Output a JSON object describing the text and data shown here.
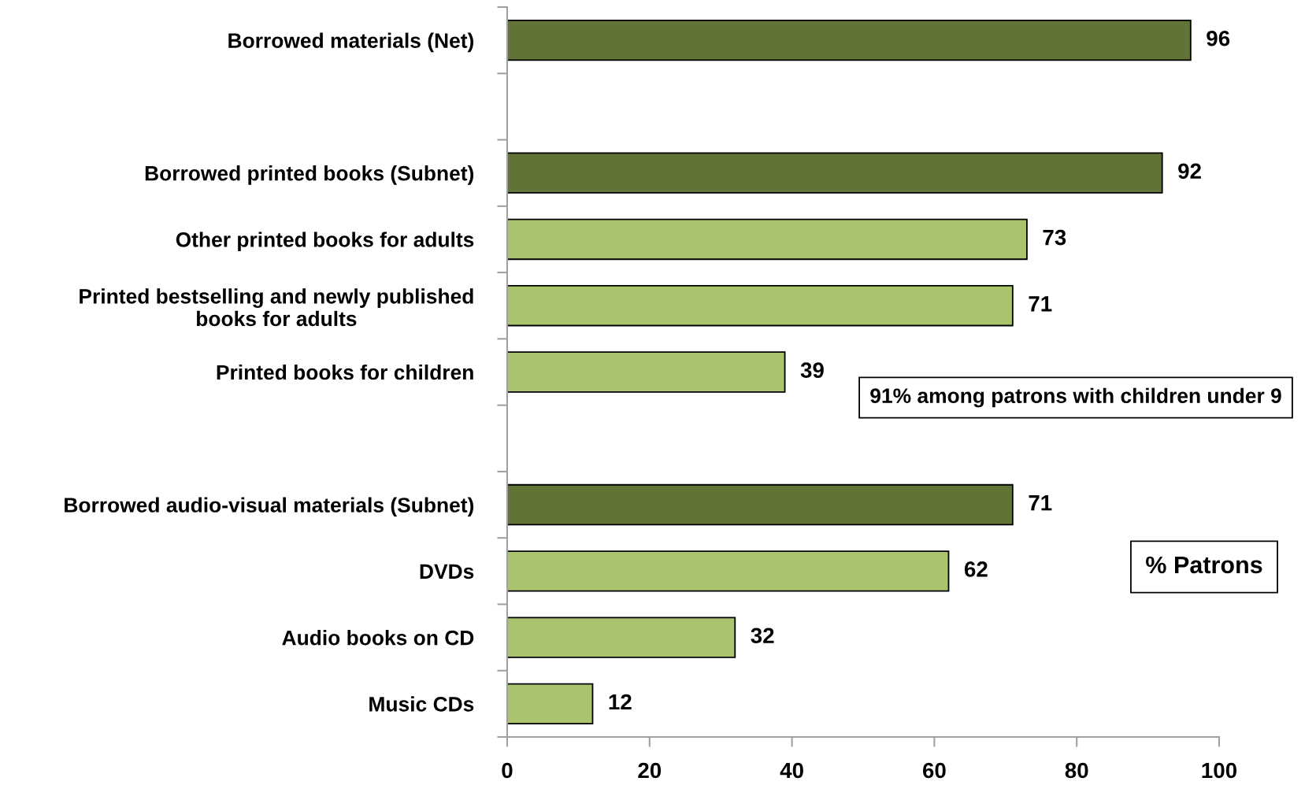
{
  "chart_data": {
    "type": "bar",
    "orientation": "horizontal",
    "categories": [
      "Borrowed materials (Net)",
      null,
      "Borrowed printed books (Subnet)",
      "Other printed books for adults",
      "Printed bestselling and newly published\nbooks for adults",
      "Printed books for children",
      null,
      "Borrowed audio-visual materials (Subnet)",
      "DVDs",
      "Audio books on CD",
      "Music CDs"
    ],
    "values": [
      96,
      null,
      92,
      73,
      71,
      39,
      null,
      71,
      62,
      32,
      12
    ],
    "colors": [
      "#617337",
      null,
      "#617337",
      "#a9c46c",
      "#a9c46c",
      "#a9c46c",
      null,
      "#617337",
      "#a9c46c",
      "#a9c46c",
      "#a9c46c"
    ],
    "xlim": [
      0,
      100
    ],
    "xticks": [
      0,
      20,
      40,
      60,
      80,
      100
    ],
    "data_labels": true,
    "grid": false,
    "annotations": [
      "91% among patrons with children under 9",
      "% Patrons"
    ]
  }
}
